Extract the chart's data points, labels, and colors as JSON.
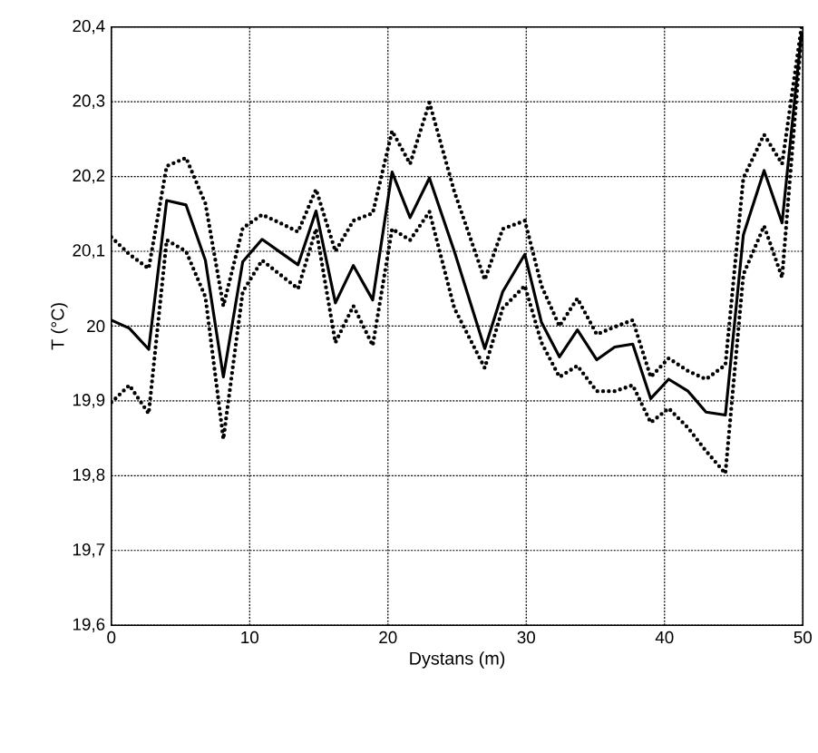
{
  "chart_data": {
    "type": "line",
    "xlabel": "Dystans (m)",
    "ylabel": "T (°C)",
    "x": [
      0,
      1.3,
      2.7,
      4,
      5.4,
      6.8,
      8.1,
      9.5,
      10.9,
      12.2,
      13.5,
      14.8,
      16.2,
      17.5,
      18.9,
      20.3,
      21.6,
      23,
      24.8,
      27,
      28.3,
      29.9,
      31.1,
      32.4,
      33.7,
      35.1,
      36.4,
      37.7,
      39,
      40.3,
      41.7,
      43,
      44.4,
      45.7,
      47.2,
      48.5,
      49.9
    ],
    "series": [
      {
        "color": "#000000",
        "line_style": "solid",
        "values": [
          20.008,
          19.997,
          19.969,
          20.168,
          20.162,
          20.088,
          19.932,
          20.086,
          20.116,
          20.099,
          20.082,
          20.154,
          20.031,
          20.081,
          20.035,
          20.206,
          20.145,
          20.198,
          20.1,
          19.97,
          20.046,
          20.096,
          20.005,
          19.959,
          19.995,
          19.955,
          19.972,
          19.976,
          19.903,
          19.929,
          19.913,
          19.885,
          19.881,
          20.122,
          20.208,
          20.138,
          20.392
        ]
      },
      {
        "color": "#000000",
        "line_style": "dotted",
        "values": [
          20.119,
          20.096,
          20.077,
          20.214,
          20.225,
          20.164,
          20.027,
          20.131,
          20.149,
          20.138,
          20.126,
          20.183,
          20.1,
          20.141,
          20.151,
          20.261,
          20.217,
          20.299,
          20.18,
          20.062,
          20.13,
          20.141,
          20.054,
          20.0,
          20.037,
          19.989,
          19.999,
          20.008,
          19.932,
          19.957,
          19.94,
          19.929,
          19.948,
          20.198,
          20.256,
          20.217,
          20.4
        ]
      },
      {
        "color": "#000000",
        "line_style": "dotted",
        "values": [
          19.898,
          19.921,
          19.883,
          20.115,
          20.1,
          20.039,
          19.849,
          20.046,
          20.088,
          20.069,
          20.05,
          20.13,
          19.978,
          20.027,
          19.974,
          20.13,
          20.115,
          20.153,
          20.024,
          19.944,
          20.024,
          20.054,
          19.978,
          19.932,
          19.947,
          19.913,
          19.913,
          19.921,
          19.871,
          19.89,
          19.864,
          19.833,
          19.803,
          20.069,
          20.134,
          20.065,
          20.389
        ]
      }
    ],
    "xlim": [
      0,
      50
    ],
    "xticks": [
      0,
      10,
      20,
      30,
      40,
      50
    ],
    "ylim": [
      19.6,
      20.4
    ],
    "yticks": [
      {
        "value": 19.6,
        "label": "19,6"
      },
      {
        "value": 19.7,
        "label": "19,7"
      },
      {
        "value": 19.8,
        "label": "19,8"
      },
      {
        "value": 19.9,
        "label": "19,9"
      },
      20,
      {
        "value": 20.1,
        "label": "20,1"
      },
      {
        "value": 20.2,
        "label": "20,2"
      },
      {
        "value": 20.3,
        "label": "20,3"
      },
      {
        "value": 20.4,
        "label": "20,4"
      }
    ],
    "grid": true,
    "marker": "none"
  }
}
